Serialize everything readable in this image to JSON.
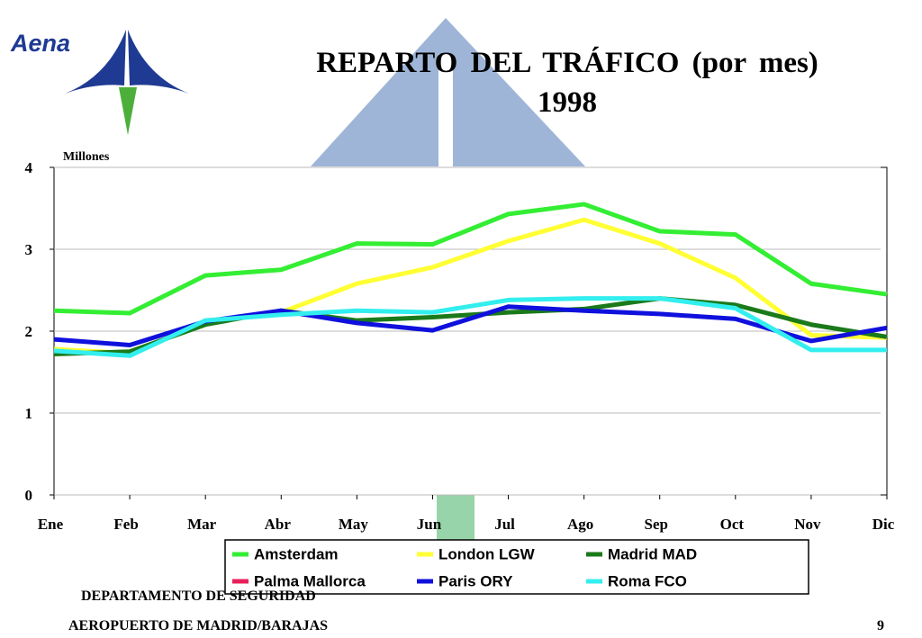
{
  "logo": "Aena",
  "chart_data": {
    "type": "line",
    "title": "REPARTO DEL TRÁFICO (por mes)",
    "subtitle": "1998",
    "y_label": "Millones",
    "categories": [
      "Ene",
      "Feb",
      "Mar",
      "Abr",
      "May",
      "Jun",
      "Jul",
      "Ago",
      "Sep",
      "Oct",
      "Nov",
      "Dic"
    ],
    "series": [
      {
        "name": "Amsterdam",
        "color": "#33ee33",
        "values": [
          2.25,
          2.22,
          2.68,
          2.75,
          3.07,
          3.06,
          3.43,
          3.55,
          3.22,
          3.18,
          2.58,
          2.45
        ]
      },
      {
        "name": "London LGW",
        "color": "#ffff33",
        "values": [
          1.78,
          1.73,
          2.1,
          2.23,
          2.58,
          2.78,
          3.1,
          3.36,
          3.07,
          2.65,
          1.95,
          1.92
        ]
      },
      {
        "name": "Madrid MAD",
        "color": "#1a7a1a",
        "values": [
          1.72,
          1.75,
          2.08,
          2.25,
          2.13,
          2.17,
          2.23,
          2.27,
          2.4,
          2.32,
          2.08,
          1.93
        ]
      },
      {
        "name": "Palma Mallorca",
        "color": "#e8205a",
        "values": [
          null,
          null,
          null,
          null,
          null,
          null,
          null,
          null,
          null,
          null,
          null,
          null
        ]
      },
      {
        "name": "Paris ORY",
        "color": "#1010dd",
        "values": [
          1.9,
          1.83,
          2.12,
          2.25,
          2.1,
          2.01,
          2.3,
          2.25,
          2.21,
          2.15,
          1.88,
          2.04
        ]
      },
      {
        "name": "Roma FCO",
        "color": "#33eeee",
        "values": [
          1.76,
          1.7,
          2.13,
          2.2,
          2.25,
          2.23,
          2.38,
          2.4,
          2.4,
          2.28,
          1.77,
          1.77
        ]
      }
    ],
    "ylim": [
      0,
      4
    ],
    "yticks": [
      0,
      1,
      2,
      3,
      4
    ],
    "grid": true,
    "legend": "bottom"
  },
  "footer": {
    "department": "DEPARTAMENTO DE SEGURIDAD",
    "airport": "AEROPUERTO DE MADRID/BARAJAS",
    "page": "9"
  }
}
